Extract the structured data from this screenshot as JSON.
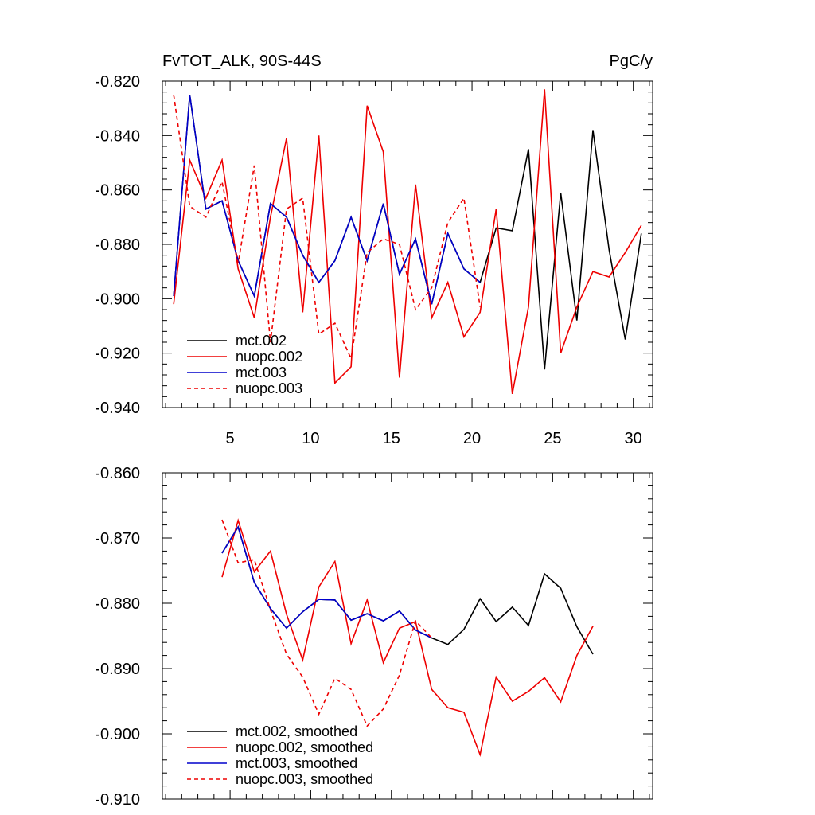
{
  "colors": {
    "mct.002": "#000000",
    "nuopc.002": "#ee0000",
    "mct.003": "#0000cc",
    "nuopc.003": "#ee0000"
  },
  "chart_data": [
    {
      "type": "line",
      "title_left": "FvTOT_ALK, 90S-44S",
      "title_right": "PgC/y",
      "xlabel": "",
      "ylabel": "",
      "xlim": [
        0.8,
        31.2
      ],
      "ylim": [
        -0.94,
        -0.82
      ],
      "xticks": [
        5,
        10,
        15,
        20,
        25,
        30
      ],
      "xtick_labels": [
        "5",
        "10",
        "15",
        "20",
        "25",
        "30"
      ],
      "yticks": [
        -0.94,
        -0.92,
        -0.9,
        -0.88,
        -0.86,
        -0.84,
        -0.82
      ],
      "ytick_labels": [
        "-0.940",
        "-0.920",
        "-0.900",
        "-0.880",
        "-0.860",
        "-0.840",
        "-0.820"
      ],
      "legend_position": "bottom-left",
      "series": [
        {
          "name": "mct.002",
          "legend": "mct.002",
          "dash": false,
          "x": [
            1.5,
            2.5,
            3.5,
            4.5,
            5.5,
            6.5,
            7.5,
            8.5,
            9.5,
            10.5,
            11.5,
            12.5,
            13.5,
            14.5,
            15.5,
            16.5,
            17.5,
            18.5,
            19.5,
            20.5,
            21.5,
            22.5,
            23.5,
            24.5,
            25.5,
            26.5,
            27.5,
            28.5,
            29.5,
            30.5
          ],
          "values": [
            -0.899,
            -0.825,
            -0.867,
            -0.864,
            -0.886,
            -0.899,
            -0.865,
            -0.87,
            -0.884,
            -0.894,
            -0.886,
            -0.87,
            -0.886,
            -0.865,
            -0.891,
            -0.878,
            -0.902,
            -0.876,
            -0.889,
            -0.894,
            -0.874,
            -0.875,
            -0.845,
            -0.926,
            -0.861,
            -0.908,
            -0.838,
            -0.882,
            -0.915,
            -0.876
          ]
        },
        {
          "name": "nuopc.002",
          "legend": "nuopc.002",
          "dash": false,
          "x": [
            1.5,
            2.5,
            3.5,
            4.5,
            5.5,
            6.5,
            7.5,
            8.5,
            9.5,
            10.5,
            11.5,
            12.5,
            13.5,
            14.5,
            15.5,
            16.5,
            17.5,
            18.5,
            19.5,
            20.5,
            21.5,
            22.5,
            23.5,
            24.5,
            25.5,
            26.5,
            27.5,
            28.5,
            29.5,
            30.5
          ],
          "values": [
            -0.902,
            -0.849,
            -0.863,
            -0.849,
            -0.889,
            -0.907,
            -0.87,
            -0.841,
            -0.905,
            -0.84,
            -0.931,
            -0.925,
            -0.829,
            -0.846,
            -0.929,
            -0.858,
            -0.907,
            -0.894,
            -0.914,
            -0.905,
            -0.867,
            -0.935,
            -0.903,
            -0.823,
            -0.92,
            -0.903,
            -0.89,
            -0.892,
            -0.883,
            -0.873
          ]
        },
        {
          "name": "mct.003",
          "legend": "mct.003",
          "dash": false,
          "x": [
            1.5,
            2.5,
            3.5,
            4.5,
            5.5,
            6.5,
            7.5,
            8.5,
            9.5,
            10.5,
            11.5,
            12.5,
            13.5,
            14.5,
            15.5,
            16.5,
            17.5,
            18.5,
            19.5,
            20.5
          ],
          "values": [
            -0.899,
            -0.825,
            -0.867,
            -0.864,
            -0.886,
            -0.899,
            -0.865,
            -0.87,
            -0.884,
            -0.894,
            -0.886,
            -0.87,
            -0.886,
            -0.865,
            -0.891,
            -0.878,
            -0.902,
            -0.876,
            -0.889,
            -0.894
          ]
        },
        {
          "name": "nuopc.003",
          "legend": "nuopc.003",
          "dash": true,
          "x": [
            1.5,
            2.5,
            3.5,
            4.5,
            5.5,
            6.5,
            7.5,
            8.5,
            9.5,
            10.5,
            11.5,
            12.5,
            13.5,
            14.5,
            15.5,
            16.5,
            17.5,
            18.5,
            19.5,
            20.5
          ],
          "values": [
            -0.825,
            -0.866,
            -0.87,
            -0.857,
            -0.887,
            -0.851,
            -0.916,
            -0.867,
            -0.863,
            -0.913,
            -0.909,
            -0.922,
            -0.883,
            -0.878,
            -0.88,
            -0.904,
            -0.896,
            -0.872,
            -0.863,
            -0.903
          ]
        }
      ]
    },
    {
      "type": "line",
      "title_left": "",
      "title_right": "",
      "xlabel": "",
      "ylabel": "",
      "xlim": [
        0.8,
        31.2
      ],
      "ylim": [
        -0.91,
        -0.86
      ],
      "xticks": [
        5,
        10,
        15,
        20,
        25,
        30
      ],
      "xtick_labels": [],
      "yticks": [
        -0.91,
        -0.9,
        -0.89,
        -0.88,
        -0.87,
        -0.86
      ],
      "ytick_labels": [
        "-0.910",
        "-0.900",
        "-0.890",
        "-0.880",
        "-0.870",
        "-0.860"
      ],
      "legend_position": "bottom-left",
      "series": [
        {
          "name": "mct.002",
          "legend": "mct.002, smoothed",
          "dash": false,
          "x": [
            4.5,
            5.5,
            6.5,
            7.5,
            8.5,
            9.5,
            10.5,
            11.5,
            12.5,
            13.5,
            14.5,
            15.5,
            16.5,
            17.5,
            18.5,
            19.5,
            20.5,
            21.5,
            22.5,
            23.5,
            24.5,
            25.5,
            26.5,
            27.5
          ],
          "values": [
            -0.8723,
            -0.8683,
            -0.8768,
            -0.8808,
            -0.8838,
            -0.8813,
            -0.8794,
            -0.8795,
            -0.8826,
            -0.8816,
            -0.8827,
            -0.8812,
            -0.8841,
            -0.8853,
            -0.8863,
            -0.884,
            -0.8793,
            -0.8828,
            -0.8806,
            -0.8834,
            -0.8755,
            -0.8777,
            -0.8836,
            -0.8878
          ]
        },
        {
          "name": "nuopc.002",
          "legend": "nuopc.002, smoothed",
          "dash": false,
          "x": [
            4.5,
            5.5,
            6.5,
            7.5,
            8.5,
            9.5,
            10.5,
            11.5,
            12.5,
            13.5,
            14.5,
            15.5,
            16.5,
            17.5,
            18.5,
            19.5,
            20.5,
            21.5,
            22.5,
            23.5,
            24.5,
            25.5,
            26.5,
            27.5
          ],
          "values": [
            -0.876,
            -0.8673,
            -0.8752,
            -0.872,
            -0.8817,
            -0.8887,
            -0.8775,
            -0.8736,
            -0.8862,
            -0.8795,
            -0.8891,
            -0.8838,
            -0.8828,
            -0.8932,
            -0.896,
            -0.8967,
            -0.9032,
            -0.8913,
            -0.895,
            -0.8935,
            -0.8914,
            -0.8951,
            -0.888,
            -0.8835
          ]
        },
        {
          "name": "mct.003",
          "legend": "mct.003, smoothed",
          "dash": false,
          "x": [
            4.5,
            5.5,
            6.5,
            7.5,
            8.5,
            9.5,
            10.5,
            11.5,
            12.5,
            13.5,
            14.5,
            15.5,
            16.5,
            17.5
          ],
          "values": [
            -0.8723,
            -0.8683,
            -0.8768,
            -0.8808,
            -0.8838,
            -0.8813,
            -0.8794,
            -0.8795,
            -0.8826,
            -0.8816,
            -0.8827,
            -0.8812,
            -0.8841,
            -0.8853
          ]
        },
        {
          "name": "nuopc.003",
          "legend": "nuopc.003, smoothed",
          "dash": true,
          "x": [
            4.5,
            5.5,
            6.5,
            7.5,
            8.5,
            9.5,
            10.5,
            11.5,
            12.5,
            13.5,
            14.5,
            15.5,
            16.5,
            17.5
          ],
          "values": [
            -0.8672,
            -0.8738,
            -0.8733,
            -0.881,
            -0.8878,
            -0.8913,
            -0.897,
            -0.8915,
            -0.8932,
            -0.8988,
            -0.8962,
            -0.891,
            -0.8827,
            -0.8853
          ]
        }
      ]
    }
  ]
}
